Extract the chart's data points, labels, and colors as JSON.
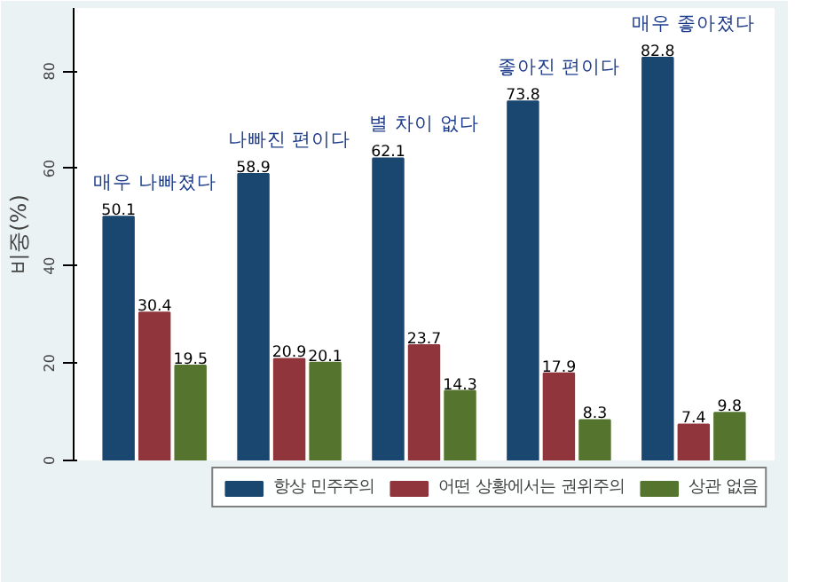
{
  "chart_data": {
    "type": "bar",
    "ylabel": "비중(%)",
    "categories": [
      "매우 나빠졌다",
      "나빠진 편이다",
      "별 차이 없다",
      "좋아진 편이다",
      "매우 좋아졌다"
    ],
    "series": [
      {
        "name": "항상 민주주의",
        "color": "#1a476f",
        "values": [
          50.1,
          58.9,
          62.1,
          73.8,
          82.8
        ]
      },
      {
        "name": "어떤 상황에서는 권위주의",
        "color": "#90353b",
        "values": [
          30.4,
          20.9,
          23.7,
          17.9,
          7.4
        ]
      },
      {
        "name": "상관 없음",
        "color": "#55752f",
        "values": [
          19.5,
          20.1,
          14.3,
          8.3,
          9.8
        ]
      }
    ],
    "ylim": [
      0,
      93
    ],
    "yticks": [
      0,
      20,
      40,
      60,
      80
    ],
    "grid": false,
    "legend": "bottom",
    "data_labels": true
  }
}
